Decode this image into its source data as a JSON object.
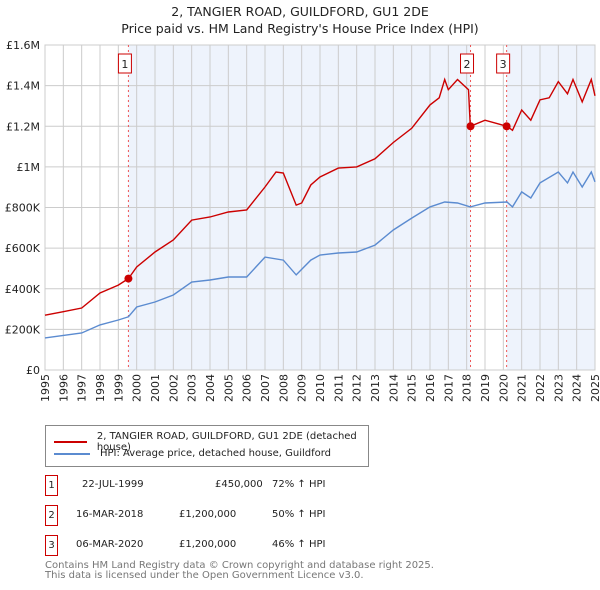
{
  "title": "2, TANGIER ROAD, GUILDFORD, GU1 2DE",
  "subtitle": "Price paid vs. HM Land Registry's House Price Index (HPI)",
  "chart_data": {
    "type": "line",
    "title": "2, TANGIER ROAD, GUILDFORD, GU1 2DE",
    "subtitle": "Price paid vs. HM Land Registry's House Price Index (HPI)",
    "xlim": [
      1995,
      2025
    ],
    "ylim": [
      0,
      1600000
    ],
    "x_ticks": [
      1995,
      1996,
      1997,
      1998,
      1999,
      2000,
      2001,
      2002,
      2003,
      2004,
      2005,
      2006,
      2007,
      2008,
      2009,
      2010,
      2011,
      2012,
      2013,
      2014,
      2015,
      2016,
      2017,
      2018,
      2019,
      2020,
      2021,
      2022,
      2023,
      2024,
      2025
    ],
    "y_ticks": [
      0,
      200000,
      400000,
      600000,
      800000,
      1000000,
      1200000,
      1400000,
      1600000
    ],
    "y_tick_labels": [
      "£0",
      "£200K",
      "£400K",
      "£600K",
      "£800K",
      "£1M",
      "£1.2M",
      "£1.4M",
      "£1.6M"
    ],
    "grid": true,
    "series": [
      {
        "name": "2, TANGIER ROAD, GUILDFORD, GU1 2DE (detached house)",
        "color": "#cc0000",
        "x": [
          1995,
          1996,
          1997,
          1998,
          1999,
          1999.55,
          2000,
          2001,
          2002,
          2003,
          2004,
          2005,
          2006,
          2007,
          2007.6,
          2008,
          2008.7,
          2009,
          2009.5,
          2010,
          2011,
          2012,
          2013,
          2014,
          2015,
          2016,
          2016.5,
          2016.8,
          2017,
          2017.5,
          2018.1,
          2018.2,
          2019,
          2020.2,
          2020.5,
          2021,
          2021.5,
          2022,
          2022.5,
          2023,
          2023.5,
          2023.8,
          2024.3,
          2024.8,
          2025
        ],
        "y": [
          270000,
          287000,
          305000,
          379000,
          418000,
          450000,
          507000,
          581000,
          640000,
          738000,
          753000,
          778000,
          788000,
          901000,
          975000,
          970000,
          812000,
          822000,
          911000,
          950000,
          994000,
          1000000,
          1040000,
          1120000,
          1190000,
          1305000,
          1340000,
          1430000,
          1380000,
          1430000,
          1380000,
          1200000,
          1230000,
          1200000,
          1180000,
          1280000,
          1230000,
          1330000,
          1340000,
          1420000,
          1360000,
          1430000,
          1320000,
          1430000,
          1350000
        ]
      },
      {
        "name": "HPI: Average price, detached house, Guildford",
        "color": "#5b8bd0",
        "x": [
          1995,
          1997,
          1998,
          1999,
          1999.55,
          2000,
          2001,
          2002,
          2003,
          2004,
          2005,
          2006,
          2007,
          2008,
          2008.7,
          2009.5,
          2010,
          2011,
          2012,
          2013,
          2014,
          2015,
          2016,
          2016.8,
          2017.5,
          2018.2,
          2019,
          2020.2,
          2020.5,
          2021,
          2021.5,
          2022,
          2023,
          2023.5,
          2023.8,
          2024.3,
          2024.8,
          2025
        ],
        "y": [
          158000,
          182000,
          222000,
          246000,
          262000,
          310000,
          335000,
          369000,
          433000,
          443000,
          458000,
          458000,
          556000,
          541000,
          468000,
          541000,
          566000,
          576000,
          581000,
          615000,
          689000,
          748000,
          803000,
          827000,
          822000,
          803000,
          822000,
          827000,
          803000,
          877000,
          847000,
          921000,
          975000,
          921000,
          975000,
          901000,
          975000,
          926000
        ]
      }
    ],
    "sales": [
      {
        "label": "1",
        "x": 1999.55,
        "y": 450000
      },
      {
        "label": "2",
        "x": 2018.21,
        "y": 1200000
      },
      {
        "label": "3",
        "x": 2020.18,
        "y": 1200000
      }
    ],
    "shaded_ranges": [
      [
        1999.55,
        2018.21
      ],
      [
        2020.18,
        2025
      ]
    ],
    "legend_placement": "below"
  },
  "legend": {
    "red": "2, TANGIER ROAD, GUILDFORD, GU1 2DE (detached house)",
    "blue": "HPI: Average price, detached house, Guildford"
  },
  "table": [
    {
      "num": "1",
      "date": "22-JUL-1999",
      "price": "£450,000",
      "hpi": "72% ↑ HPI"
    },
    {
      "num": "2",
      "date": "16-MAR-2018",
      "price": "£1,200,000",
      "hpi": "50% ↑ HPI"
    },
    {
      "num": "3",
      "date": "06-MAR-2020",
      "price": "£1,200,000",
      "hpi": "46% ↑ HPI"
    }
  ],
  "footer": {
    "line1": "Contains HM Land Registry data © Crown copyright and database right 2025.",
    "line2": "This data is licensed under the Open Government Licence v3.0."
  }
}
